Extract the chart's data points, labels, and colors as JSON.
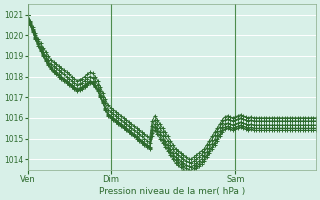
{
  "title": "",
  "xlabel": "Pression niveau de la mer( hPa )",
  "bg_color": "#d8f0e8",
  "grid_color": "#ffffff",
  "line_color": "#2d6a2d",
  "ylim": [
    1013.5,
    1021.5
  ],
  "yticks": [
    1014,
    1015,
    1016,
    1017,
    1018,
    1019,
    1020,
    1021
  ],
  "xtick_labels": [
    "Ven",
    "Dim",
    "Sam"
  ],
  "xtick_positions": [
    0,
    32,
    80
  ],
  "total_points": 112,
  "lines": [
    [
      1021.0,
      1020.7,
      1020.4,
      1020.1,
      1019.8,
      1019.6,
      1019.4,
      1019.2,
      1019.0,
      1018.8,
      1018.7,
      1018.6,
      1018.5,
      1018.4,
      1018.3,
      1018.2,
      1018.1,
      1018.0,
      1017.9,
      1017.8,
      1017.85,
      1017.9,
      1018.0,
      1018.1,
      1018.2,
      1018.15,
      1018.0,
      1017.8,
      1017.5,
      1017.2,
      1016.9,
      1016.6,
      1016.5,
      1016.4,
      1016.3,
      1016.2,
      1016.1,
      1016.0,
      1015.9,
      1015.8,
      1015.7,
      1015.6,
      1015.5,
      1015.4,
      1015.3,
      1015.2,
      1015.1,
      1015.0,
      1015.85,
      1016.1,
      1015.9,
      1015.7,
      1015.5,
      1015.3,
      1015.1,
      1014.9,
      1014.7,
      1014.5,
      1014.4,
      1014.3,
      1014.2,
      1014.1,
      1014.0,
      1014.0,
      1014.1,
      1014.2,
      1014.3,
      1014.4,
      1014.5,
      1014.7,
      1014.9,
      1015.1,
      1015.3,
      1015.5,
      1015.7,
      1015.9,
      1016.05,
      1016.1,
      1016.05,
      1016.0,
      1016.05,
      1016.1,
      1016.15,
      1016.1,
      1016.05,
      1016.0,
      1016.05,
      1016.0,
      1016.0,
      1016.0,
      1016.0,
      1016.0,
      1016.0,
      1016.0,
      1016.0,
      1016.0,
      1016.0,
      1016.0,
      1016.0,
      1016.0,
      1016.0,
      1016.0,
      1016.0,
      1016.0,
      1016.0,
      1016.0,
      1016.0,
      1016.0,
      1016.0,
      1016.0,
      1016.0,
      1016.0
    ],
    [
      1021.0,
      1020.65,
      1020.3,
      1020.0,
      1019.7,
      1019.45,
      1019.2,
      1019.0,
      1018.8,
      1018.6,
      1018.5,
      1018.4,
      1018.3,
      1018.2,
      1018.1,
      1018.0,
      1017.9,
      1017.8,
      1017.7,
      1017.6,
      1017.65,
      1017.7,
      1017.8,
      1017.9,
      1018.0,
      1017.95,
      1017.8,
      1017.6,
      1017.3,
      1017.0,
      1016.7,
      1016.4,
      1016.3,
      1016.2,
      1016.1,
      1016.0,
      1015.9,
      1015.8,
      1015.7,
      1015.6,
      1015.5,
      1015.4,
      1015.3,
      1015.2,
      1015.1,
      1015.0,
      1014.9,
      1014.8,
      1015.6,
      1015.9,
      1015.7,
      1015.5,
      1015.3,
      1015.1,
      1014.9,
      1014.7,
      1014.5,
      1014.3,
      1014.2,
      1014.1,
      1014.0,
      1013.9,
      1013.85,
      1013.8,
      1013.9,
      1014.0,
      1014.1,
      1014.2,
      1014.35,
      1014.55,
      1014.75,
      1014.95,
      1015.15,
      1015.35,
      1015.55,
      1015.75,
      1015.9,
      1015.95,
      1015.9,
      1015.85,
      1015.9,
      1015.95,
      1016.0,
      1015.95,
      1015.9,
      1015.85,
      1015.9,
      1015.85,
      1015.85,
      1015.85,
      1015.85,
      1015.85,
      1015.85,
      1015.85,
      1015.85,
      1015.85,
      1015.85,
      1015.85,
      1015.85,
      1015.85,
      1015.85,
      1015.85,
      1015.85,
      1015.85,
      1015.85,
      1015.85,
      1015.85,
      1015.85,
      1015.85,
      1015.85,
      1015.85,
      1015.85
    ],
    [
      1021.0,
      1020.6,
      1020.25,
      1019.9,
      1019.6,
      1019.35,
      1019.1,
      1018.85,
      1018.65,
      1018.45,
      1018.3,
      1018.2,
      1018.1,
      1018.0,
      1017.9,
      1017.8,
      1017.7,
      1017.6,
      1017.5,
      1017.4,
      1017.45,
      1017.5,
      1017.6,
      1017.7,
      1017.8,
      1017.75,
      1017.6,
      1017.4,
      1017.1,
      1016.8,
      1016.5,
      1016.2,
      1016.1,
      1016.0,
      1015.9,
      1015.8,
      1015.7,
      1015.6,
      1015.5,
      1015.4,
      1015.3,
      1015.2,
      1015.1,
      1015.0,
      1014.9,
      1014.8,
      1014.7,
      1014.6,
      1015.4,
      1015.7,
      1015.5,
      1015.3,
      1015.1,
      1014.9,
      1014.7,
      1014.5,
      1014.3,
      1014.1,
      1014.0,
      1013.9,
      1013.8,
      1013.7,
      1013.65,
      1013.6,
      1013.7,
      1013.8,
      1013.9,
      1014.0,
      1014.15,
      1014.35,
      1014.55,
      1014.75,
      1014.95,
      1015.15,
      1015.35,
      1015.55,
      1015.7,
      1015.75,
      1015.7,
      1015.65,
      1015.7,
      1015.75,
      1015.8,
      1015.75,
      1015.7,
      1015.65,
      1015.7,
      1015.65,
      1015.65,
      1015.65,
      1015.65,
      1015.65,
      1015.65,
      1015.65,
      1015.65,
      1015.65,
      1015.65,
      1015.65,
      1015.65,
      1015.65,
      1015.65,
      1015.65,
      1015.65,
      1015.65,
      1015.65,
      1015.65,
      1015.65,
      1015.65,
      1015.65,
      1015.65,
      1015.65,
      1015.65
    ],
    [
      1021.0,
      1020.55,
      1020.2,
      1019.85,
      1019.55,
      1019.3,
      1019.05,
      1018.8,
      1018.6,
      1018.4,
      1018.25,
      1018.15,
      1018.05,
      1017.95,
      1017.85,
      1017.75,
      1017.65,
      1017.55,
      1017.45,
      1017.35,
      1017.4,
      1017.45,
      1017.55,
      1017.65,
      1017.75,
      1017.7,
      1017.55,
      1017.35,
      1017.05,
      1016.75,
      1016.45,
      1016.15,
      1016.05,
      1015.95,
      1015.85,
      1015.75,
      1015.65,
      1015.55,
      1015.45,
      1015.35,
      1015.25,
      1015.15,
      1015.05,
      1014.95,
      1014.85,
      1014.75,
      1014.65,
      1014.55,
      1015.25,
      1015.55,
      1015.35,
      1015.15,
      1014.95,
      1014.75,
      1014.55,
      1014.35,
      1014.15,
      1013.95,
      1013.85,
      1013.75,
      1013.65,
      1013.55,
      1013.5,
      1013.45,
      1013.55,
      1013.65,
      1013.75,
      1013.85,
      1014.0,
      1014.2,
      1014.4,
      1014.6,
      1014.8,
      1015.0,
      1015.2,
      1015.4,
      1015.55,
      1015.6,
      1015.55,
      1015.5,
      1015.55,
      1015.6,
      1015.65,
      1015.6,
      1015.55,
      1015.5,
      1015.55,
      1015.5,
      1015.5,
      1015.5,
      1015.5,
      1015.5,
      1015.5,
      1015.5,
      1015.5,
      1015.5,
      1015.5,
      1015.5,
      1015.5,
      1015.5,
      1015.5,
      1015.5,
      1015.5,
      1015.5,
      1015.5,
      1015.5,
      1015.5,
      1015.5,
      1015.5,
      1015.5,
      1015.5,
      1015.5
    ],
    [
      1021.0,
      1020.5,
      1020.15,
      1019.8,
      1019.5,
      1019.25,
      1019.0,
      1018.75,
      1018.55,
      1018.35,
      1018.2,
      1018.1,
      1018.0,
      1017.9,
      1017.8,
      1017.7,
      1017.6,
      1017.5,
      1017.4,
      1017.3,
      1017.35,
      1017.4,
      1017.5,
      1017.6,
      1017.7,
      1017.65,
      1017.5,
      1017.3,
      1017.0,
      1016.7,
      1016.4,
      1016.1,
      1016.0,
      1015.9,
      1015.8,
      1015.7,
      1015.6,
      1015.5,
      1015.4,
      1015.3,
      1015.2,
      1015.1,
      1015.0,
      1014.9,
      1014.8,
      1014.7,
      1014.6,
      1014.5,
      1015.1,
      1015.4,
      1015.2,
      1015.0,
      1014.8,
      1014.6,
      1014.4,
      1014.2,
      1014.0,
      1013.8,
      1013.7,
      1013.6,
      1013.5,
      1013.45,
      1013.4,
      1013.35,
      1013.45,
      1013.55,
      1013.65,
      1013.75,
      1013.9,
      1014.1,
      1014.3,
      1014.5,
      1014.7,
      1014.9,
      1015.1,
      1015.3,
      1015.45,
      1015.5,
      1015.45,
      1015.4,
      1015.45,
      1015.5,
      1015.55,
      1015.5,
      1015.45,
      1015.4,
      1015.45,
      1015.4,
      1015.4,
      1015.4,
      1015.4,
      1015.4,
      1015.4,
      1015.4,
      1015.4,
      1015.4,
      1015.4,
      1015.4,
      1015.4,
      1015.4,
      1015.4,
      1015.4,
      1015.4,
      1015.4,
      1015.4,
      1015.4,
      1015.4,
      1015.4,
      1015.4,
      1015.4,
      1015.4,
      1015.4
    ]
  ]
}
